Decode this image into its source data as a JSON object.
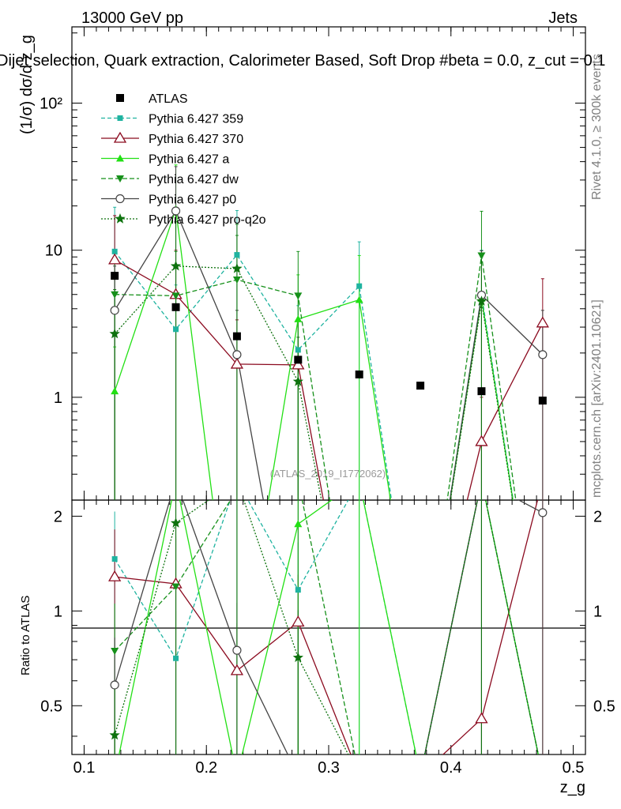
{
  "header": {
    "energy": "13000 GeV pp",
    "process": "Jets",
    "title": "Dijet selection, Quark extraction, Calorimeter Based, Soft Drop #beta = 0.0, z_cut = 0.1",
    "side_rivet": "Rivet 4.1.0, ≥ 300k events",
    "side_mcplots": "mcplots.cern.ch [arXiv:2401.10621]",
    "watermark": "(ATLAS_2019_I1772062)"
  },
  "labels": {
    "ylabel_main": "(1/σ) dσ/d z_g",
    "ylabel_ratio": "Ratio to ATLAS",
    "xlabel": "z_g"
  },
  "colors": {
    "atlas": "#000000",
    "p359": "#1fb3a0",
    "p370": "#8b0a1f",
    "pa": "#22e014",
    "pdw": "#16901a",
    "pp0": "#444444",
    "pq2o": "#0e720e"
  },
  "chart_data": {
    "type": "line",
    "xlabel": "z_g",
    "ylabel": "(1/σ) dσ/d z_g",
    "xlim": [
      0.09,
      0.51
    ],
    "ylim_main": [
      0.2,
      330
    ],
    "yscale_main": "log",
    "ylim_ratio": [
      0.35,
      2.25
    ],
    "yscale_ratio": "log",
    "x": [
      0.125,
      0.175,
      0.225,
      0.275,
      0.325,
      0.375,
      0.425,
      0.475
    ],
    "xticks": [
      0.1,
      0.2,
      0.3,
      0.4,
      0.5
    ],
    "xtick_labels": [
      "0.1",
      "0.2",
      "0.3",
      "0.4",
      "0.5"
    ],
    "yticks_main": [
      1,
      10,
      100
    ],
    "ytick_labels_main": [
      "1",
      "10",
      "10²"
    ],
    "yticks_ratio": [
      0.5,
      1,
      2
    ],
    "ytick_labels_ratio": [
      "0.5",
      "1",
      "2"
    ],
    "legend_position": "top-left",
    "series": [
      {
        "key": "atlas",
        "name": "ATLAS",
        "marker": "square",
        "dash": "none",
        "values": [
          6.7,
          4.1,
          2.6,
          1.8,
          1.43,
          1.2,
          1.1,
          0.95
        ]
      },
      {
        "key": "p359",
        "name": "Pythia 6.427 359",
        "marker": "smallsquare",
        "dash": "5,3",
        "values": [
          9.8,
          2.9,
          9.3,
          2.1,
          5.7,
          0.01,
          5.0,
          0.01
        ]
      },
      {
        "key": "p370",
        "name": "Pythia 6.427 370",
        "marker": "opentriangle",
        "dash": "none",
        "values": [
          8.6,
          5.0,
          1.68,
          1.66,
          0.01,
          0.01,
          0.5,
          3.2
        ]
      },
      {
        "key": "pa",
        "name": "Pythia 6.427 a",
        "marker": "triangle",
        "dash": "none",
        "values": [
          1.1,
          19.0,
          0.01,
          3.4,
          4.6,
          0.01,
          4.7,
          0.01
        ]
      },
      {
        "key": "pdw",
        "name": "Pythia 6.427 dw",
        "marker": "invtriangle",
        "dash": "6,3",
        "values": [
          5.0,
          4.9,
          6.3,
          4.9,
          0.01,
          0.01,
          9.2,
          0.01
        ]
      },
      {
        "key": "pp0",
        "name": "Pythia 6.427 p0",
        "marker": "opencircle",
        "dash": "none",
        "values": [
          3.9,
          18.5,
          1.95,
          0.01,
          0.01,
          0.01,
          4.95,
          1.95
        ]
      },
      {
        "key": "pq2o",
        "name": "Pythia 6.427 pro-q2o",
        "marker": "star",
        "dash": "2,2",
        "values": [
          2.7,
          7.8,
          7.5,
          1.28,
          0.01,
          0.01,
          4.5,
          0.01
        ]
      }
    ]
  }
}
